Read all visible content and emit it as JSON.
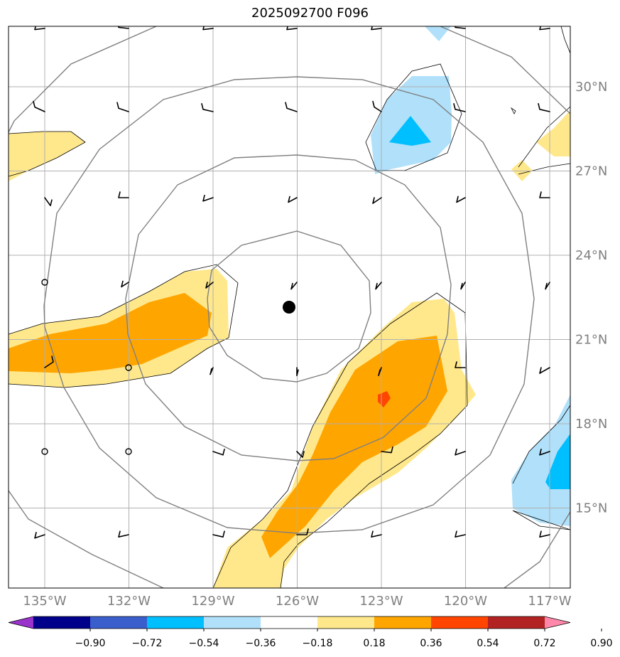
{
  "title": "2025092700 F096",
  "map": {
    "lon_range": [
      -137,
      -116.5
    ],
    "lat_range": [
      12.5,
      32.5
    ],
    "center": {
      "lon": -126.3,
      "lat": 22.15
    },
    "lat_labels": [
      "30°N",
      "27°N",
      "24°N",
      "21°N",
      "18°N",
      "15°N"
    ],
    "lat_values": [
      30,
      27,
      24,
      21,
      18,
      15
    ],
    "lon_labels": [
      "135°W",
      "132°W",
      "129°W",
      "126°W",
      "123°W",
      "120°W",
      "117°W"
    ],
    "lon_values": [
      -135,
      -132,
      -129,
      -126,
      -123,
      -120,
      -117
    ]
  },
  "colorbar": {
    "ticks": [
      "−0.90",
      "−0.72",
      "−0.54",
      "−0.36",
      "−0.18",
      "0.18",
      "0.36",
      "0.54",
      "0.72",
      "0.90"
    ],
    "colors": [
      "#9933cc",
      "#00008b",
      "#3a5fcd",
      "#00bfff",
      "#b0e0fa",
      "#ffffff",
      "#ffe88c",
      "#ffa500",
      "#ff4500",
      "#b22222",
      "#ff88aa"
    ]
  }
}
